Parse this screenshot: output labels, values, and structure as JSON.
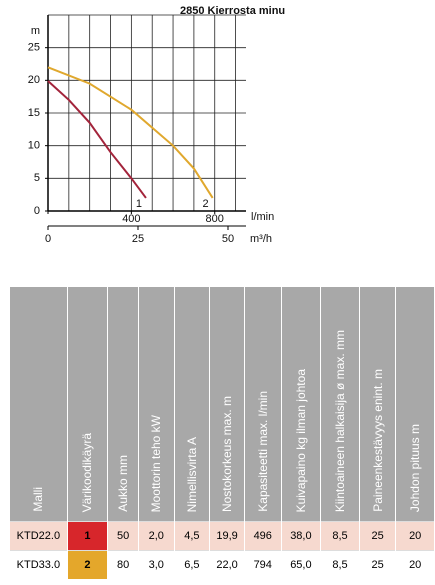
{
  "chart_data": {
    "type": "line",
    "title": "2850 Kierrosta minu",
    "ylabel": "m",
    "xlabel": "l/min",
    "x2label": "m³/h",
    "xlim": [
      0,
      950
    ],
    "xticks": [
      0,
      400,
      800
    ],
    "x2lim": [
      0,
      55
    ],
    "x2ticks": [
      0,
      25,
      50
    ],
    "ylim": [
      0,
      30
    ],
    "yticks": [
      0,
      5,
      10,
      15,
      20,
      25
    ],
    "xgrid": [
      100,
      200,
      300,
      400,
      500,
      600,
      700,
      800,
      900
    ],
    "ygrid": [
      5,
      10,
      15,
      20,
      25,
      30
    ],
    "series": [
      {
        "name": "1",
        "color": "#a3243b",
        "x": [
          0,
          100,
          200,
          300,
          400,
          470
        ],
        "values": [
          19.9,
          17,
          13.5,
          9,
          5,
          2
        ]
      },
      {
        "name": "2",
        "color": "#e0a82e",
        "x": [
          0,
          200,
          400,
          600,
          700,
          790
        ],
        "values": [
          22,
          19.5,
          15.5,
          10,
          6.5,
          2
        ]
      }
    ]
  },
  "table": {
    "headers": [
      "Malli",
      "Värikoodikäyrä",
      "Aukko mm",
      "Moottorin teho kW",
      "Nimellisvirta A",
      "Nostokorkeus max. m",
      "Kapasiteetti max. l/min",
      "Kuivapaino kg ilman johtoa",
      "Kiintoaineen halkaisija ø max. mm",
      "Paineenkestävyys enint. m",
      "Johdon pituus m"
    ],
    "rows": [
      [
        "KTD22.0",
        "1",
        "50",
        "2,0",
        "4,5",
        "19,9",
        "496",
        "38,0",
        "8,5",
        "25",
        "20"
      ],
      [
        "KTD33.0",
        "2",
        "80",
        "3,0",
        "6,5",
        "22,0",
        "794",
        "65,0",
        "8,5",
        "25",
        "20"
      ]
    ],
    "row_colors": [
      "#f6d9cf",
      "#ffffff"
    ],
    "code_colors": [
      "#d7262b",
      "#e4a72b"
    ]
  }
}
